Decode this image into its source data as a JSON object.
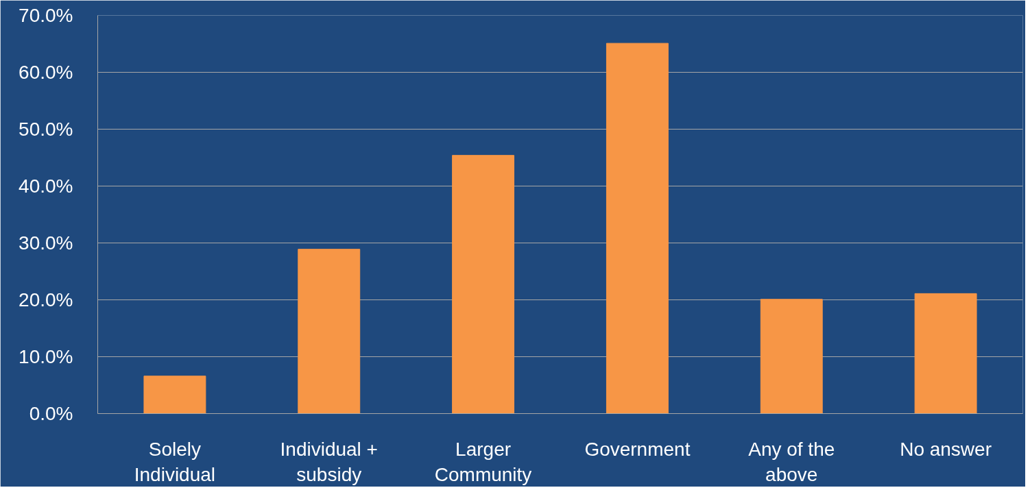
{
  "chart_data": {
    "type": "bar",
    "categories": [
      "Solely\nIndividual",
      "Individual +\nsubsidy",
      "Larger\nCommunity",
      "Government",
      "Any of the\nabove",
      "No answer"
    ],
    "values": [
      6.6,
      28.9,
      45.4,
      65.1,
      20.1,
      21.1
    ],
    "color": "#f79646",
    "ylim": [
      0,
      70
    ],
    "yticks": [
      {
        "value": 0,
        "label": "0.0%"
      },
      {
        "value": 10,
        "label": "10.0%"
      },
      {
        "value": 20,
        "label": "20.0%"
      },
      {
        "value": 30,
        "label": "30.0%"
      },
      {
        "value": 40,
        "label": "40.0%"
      },
      {
        "value": 50,
        "label": "50.0%"
      },
      {
        "value": 60,
        "label": "60.0%"
      },
      {
        "value": 70,
        "label": "70.0%"
      }
    ],
    "grid": "y"
  }
}
